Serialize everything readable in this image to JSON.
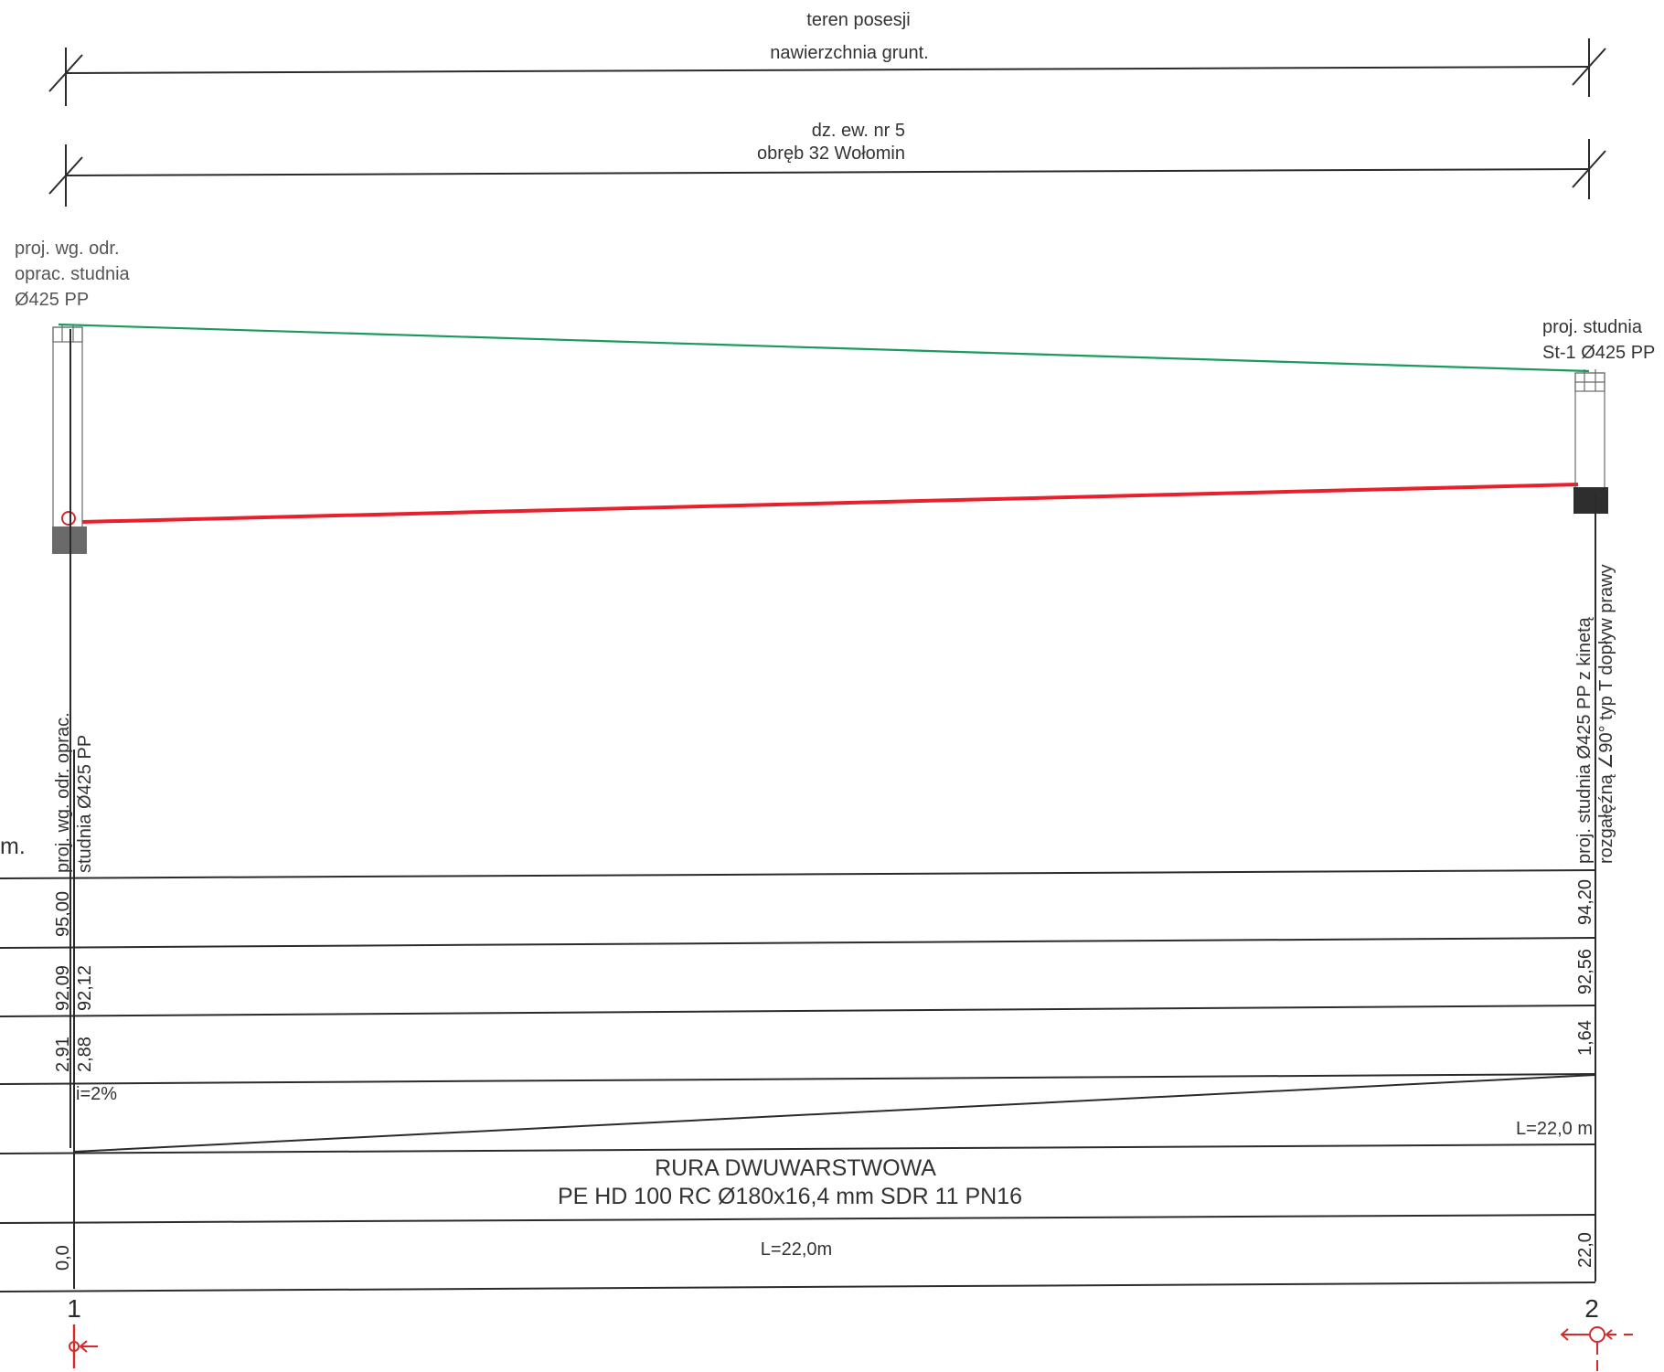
{
  "labels": {
    "teren_posesji": "teren posesji",
    "nawierzchnia": "nawierzchnia grunt.",
    "dzialka": "dz. ew. nr 5",
    "obreb": "obręb 32 Wołomin",
    "left_well_line1": "proj. wg. odr.",
    "left_well_line2": "oprac. studnia",
    "left_well_line3": "Ø425 PP",
    "right_well_line1": "proj. studnia",
    "right_well_line2": "St-1 Ø425 PP",
    "left_vertical_line1": "proj. wg. odr. oprac.",
    "left_vertical_line2": "studnia Ø425 PP",
    "right_vertical_line1": "proj. studnia Ø425 PP z kinetą",
    "right_vertical_line2": "rozgałęźną ∠90° typ T dopływ prawy",
    "unit_fragment": "m.",
    "slope": "i=2%",
    "length_right": "L=22,0 m",
    "pipe_line1": "RURA DWUWARSTWOWA",
    "pipe_line2": "PE HD 100 RC Ø180x16,4 mm SDR 11 PN16",
    "length_bottom": "L=22,0m"
  },
  "table": {
    "terrain_left": "95,00",
    "terrain_right": "94,20",
    "invert_left_a": "92,09",
    "invert_left_b": "92,12",
    "invert_right": "92,56",
    "depth_left_a": "2,91",
    "depth_left_b": "2,88",
    "depth_right": "1,64",
    "distance_left": "0,0",
    "distance_right": "22,0"
  },
  "nodes": {
    "left": "1",
    "right": "2"
  },
  "colors": {
    "terrain_line": "#1a9a5c",
    "pipe_line": "#e8202a",
    "linework": "#2b2b2b",
    "marker": "#d42a2a",
    "well_fill_left": "#6a6a6a",
    "well_fill_right": "#2e2e2e"
  }
}
